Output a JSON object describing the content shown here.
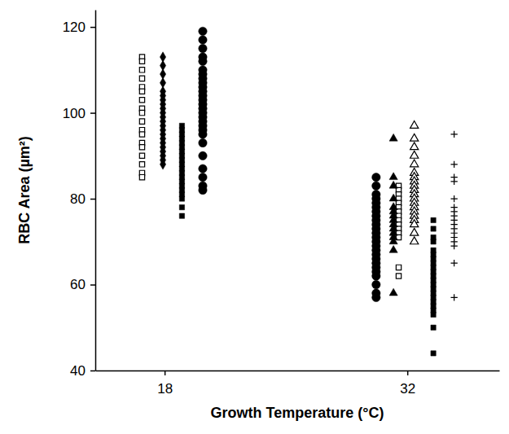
{
  "chart_data": {
    "type": "scatter",
    "x_label": "Growth Temperature (°C)",
    "y_label": "RBC Area (µm²)",
    "xlim": [
      14,
      37.3
    ],
    "xticks": [
      18,
      32
    ],
    "ylim": [
      40,
      124
    ],
    "yticks": [
      40,
      60,
      80,
      100,
      120
    ],
    "grid": false,
    "series": [
      {
        "marker": "square-open",
        "color": "#000000",
        "x": [
          16.7,
          16.7,
          16.7,
          16.7,
          16.7,
          16.7,
          16.7,
          16.7,
          16.7,
          16.7,
          16.7,
          16.7,
          16.7,
          16.7,
          16.7,
          16.7,
          16.7,
          16.7
        ],
        "values": [
          113,
          112,
          110,
          108,
          106,
          105,
          103,
          101,
          100,
          98,
          96,
          95,
          93,
          92,
          90,
          88,
          86,
          85
        ]
      },
      {
        "marker": "diamond",
        "color": "#000000",
        "x": [
          17.9,
          17.9,
          17.9,
          17.9,
          17.9,
          17.9,
          17.9,
          17.9,
          17.9,
          17.9,
          17.9,
          17.9,
          17.9,
          17.9,
          17.9,
          17.9,
          17.9,
          17.9,
          17.9,
          17.9,
          17.9,
          17.9
        ],
        "values": [
          113,
          111,
          109,
          107,
          105,
          104,
          103,
          102,
          101,
          100,
          99,
          98,
          97,
          96,
          95,
          94,
          93,
          92,
          91,
          90,
          89,
          88
        ]
      },
      {
        "marker": "square",
        "color": "#000000",
        "x": [
          19.0,
          19.0,
          19.0,
          19.0,
          19.0,
          19.0,
          19.0,
          19.0,
          19.0,
          19.0,
          19.0,
          19.0,
          19.0,
          19.0,
          19.0,
          19.0,
          19.0,
          19.0,
          19.0,
          19.0
        ],
        "values": [
          97,
          96,
          95,
          94,
          93,
          92,
          91,
          90,
          89,
          88,
          87,
          86,
          85,
          84,
          83,
          82,
          81,
          80,
          78,
          76
        ]
      },
      {
        "marker": "circle",
        "color": "#000000",
        "x": [
          20.2,
          20.2,
          20.2,
          20.2,
          20.2,
          20.2,
          20.2,
          20.2,
          20.2,
          20.2,
          20.2,
          20.2,
          20.2,
          20.2,
          20.2,
          20.2,
          20.2,
          20.2,
          20.2,
          20.2,
          20.2,
          20.2,
          20.2,
          20.2,
          20.2,
          20.2,
          20.2
        ],
        "values": [
          119,
          117,
          115,
          113,
          112,
          110,
          109,
          108,
          107,
          106,
          105,
          104,
          103,
          102,
          101,
          100,
          99,
          98,
          97,
          96,
          95,
          93,
          90,
          87,
          85,
          83,
          82
        ]
      },
      {
        "marker": "circle",
        "color": "#000000",
        "x": [
          30.2,
          30.2,
          30.2,
          30.2,
          30.2,
          30.2,
          30.2,
          30.2,
          30.2,
          30.2,
          30.2,
          30.2,
          30.2,
          30.2,
          30.2,
          30.2,
          30.2,
          30.2,
          30.2,
          30.2,
          30.2,
          30.2,
          30.2,
          30.2,
          30.2
        ],
        "values": [
          85,
          83,
          81,
          80,
          79,
          78,
          77,
          76,
          75,
          74,
          73,
          72,
          71,
          70,
          69,
          68,
          67,
          66,
          65,
          64,
          63,
          62,
          60,
          58,
          57
        ]
      },
      {
        "marker": "square-open",
        "color": "#000000",
        "x": [
          31.5,
          31.5,
          31.5,
          31.5,
          31.5,
          31.5,
          31.5,
          31.5,
          31.5,
          31.5,
          31.5,
          31.5,
          31.5,
          31.5,
          31.5
        ],
        "values": [
          83,
          82,
          81,
          80,
          79,
          78,
          77,
          76,
          75,
          74,
          73,
          72,
          71,
          64,
          62
        ]
      },
      {
        "marker": "triangle",
        "color": "#000000",
        "x": [
          31.2,
          31.2,
          31.2,
          31.2,
          31.2,
          31.2,
          31.2,
          31.2,
          31.2,
          31.2,
          31.2,
          31.2,
          31.2,
          31.2,
          31.2
        ],
        "values": [
          94,
          85,
          83,
          80,
          78,
          77,
          76,
          75,
          74,
          73,
          72,
          71,
          70,
          68,
          58
        ]
      },
      {
        "marker": "triangle-open",
        "color": "#000000",
        "x": [
          32.4,
          32.4,
          32.4,
          32.4,
          32.4,
          32.4,
          32.4,
          32.4,
          32.4,
          32.4,
          32.4,
          32.4,
          32.4,
          32.4,
          32.4,
          32.4,
          32.4,
          32.4,
          32.4,
          32.4
        ],
        "values": [
          97,
          94,
          92,
          90,
          88,
          86,
          85,
          84,
          83,
          82,
          81,
          80,
          79,
          78,
          77,
          76,
          75,
          74,
          72,
          70
        ]
      },
      {
        "marker": "square",
        "color": "#000000",
        "x": [
          33.5,
          33.5,
          33.5,
          33.5,
          33.5,
          33.5,
          33.5,
          33.5,
          33.5,
          33.5,
          33.5,
          33.5,
          33.5,
          33.5,
          33.5,
          33.5,
          33.5,
          33.5,
          33.5,
          33.5,
          33.5,
          33.5
        ],
        "values": [
          75,
          73,
          71,
          70,
          68,
          67,
          66,
          65,
          64,
          63,
          62,
          61,
          60,
          59,
          58,
          57,
          56,
          55,
          54,
          53,
          50,
          44
        ]
      },
      {
        "marker": "plus",
        "color": "#000000",
        "x": [
          34.7,
          34.7,
          34.7,
          34.7,
          34.7,
          34.7,
          34.7,
          34.7,
          34.7,
          34.7,
          34.7,
          34.7,
          34.7,
          34.7,
          34.7,
          34.7,
          34.7
        ],
        "values": [
          95,
          88,
          85,
          84,
          80,
          78,
          77,
          76,
          75,
          74,
          73,
          72,
          71,
          70,
          69,
          65,
          57
        ]
      }
    ]
  }
}
